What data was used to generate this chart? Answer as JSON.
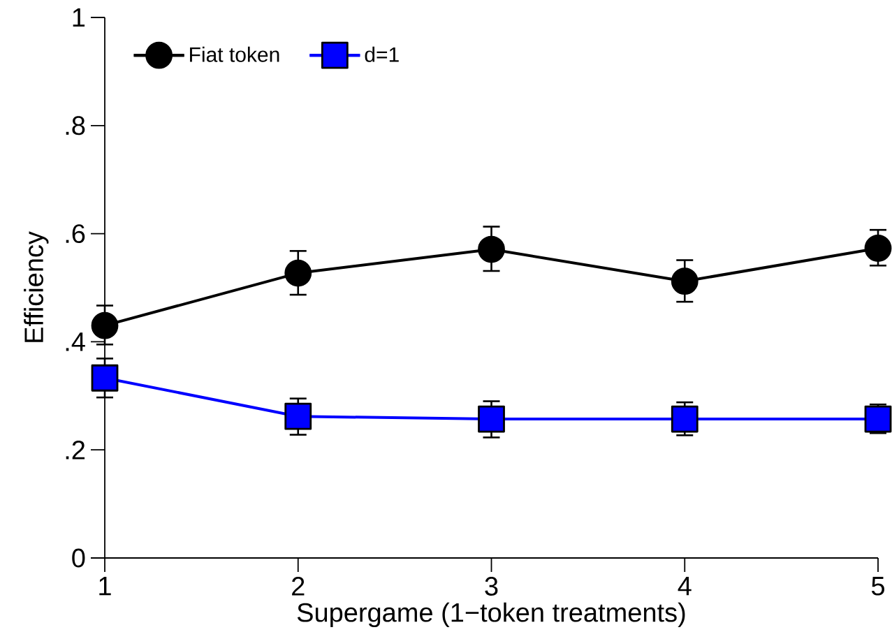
{
  "chart_data": {
    "type": "line",
    "xlabel": "Supergame (1−token treatments)",
    "ylabel": "Efficiency",
    "x": [
      1,
      2,
      3,
      4,
      5
    ],
    "xlim": [
      1,
      5
    ],
    "xticks": [
      1,
      2,
      3,
      4,
      5
    ],
    "ylim": [
      0,
      1
    ],
    "yticks": [
      0,
      {
        "value": 0.2,
        "label": ".2"
      },
      {
        "value": 0.4,
        "label": ".4"
      },
      {
        "value": 0.6,
        "label": ".6"
      },
      {
        "value": 0.8,
        "label": ".8"
      },
      1
    ],
    "grid": false,
    "legend": "top left",
    "series": [
      {
        "name": "Fiat token",
        "color": "#000000",
        "marker": "circle",
        "values": [
          0.43,
          0.527,
          0.571,
          0.512,
          0.573
        ],
        "errors": [
          [
            0.395,
            0.467
          ],
          [
            0.487,
            0.568
          ],
          [
            0.531,
            0.613
          ],
          [
            0.474,
            0.551
          ],
          [
            0.541,
            0.607
          ]
        ]
      },
      {
        "name": "d=1",
        "color": "#0000ff",
        "marker": "square",
        "values": [
          0.333,
          0.262,
          0.257,
          0.257,
          0.257
        ],
        "errors": [
          [
            0.297,
            0.369
          ],
          [
            0.228,
            0.295
          ],
          [
            0.223,
            0.29
          ],
          [
            0.227,
            0.288
          ],
          [
            0.231,
            0.284
          ]
        ]
      }
    ]
  }
}
